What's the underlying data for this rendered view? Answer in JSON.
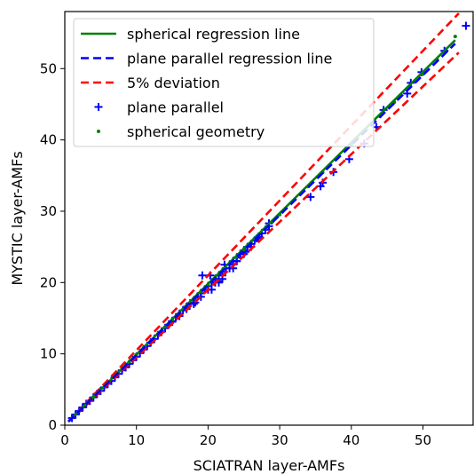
{
  "chart_data": {
    "type": "scatter",
    "xlabel": "SCIATRAN layer-AMFs",
    "ylabel": "MYSTIC layer-AMFs",
    "xlim": [
      0,
      57
    ],
    "ylim": [
      0,
      58
    ],
    "xticks": [
      0,
      10,
      20,
      30,
      40,
      50
    ],
    "yticks": [
      0,
      10,
      20,
      30,
      40,
      50
    ],
    "grid": false,
    "legend_position": "top-left",
    "series": [
      {
        "name": "spherical regression line",
        "kind": "line",
        "style": "solid",
        "color": "#008000",
        "x": [
          0.5,
          54.5
        ],
        "y": [
          0.5,
          54.0
        ]
      },
      {
        "name": "plane parallel regression line",
        "kind": "line",
        "style": "dashed",
        "color": "#0000ff",
        "x": [
          0.5,
          54.5
        ],
        "y": [
          0.5,
          53.5
        ]
      },
      {
        "name": "5% deviation",
        "kind": "line",
        "style": "dashed",
        "color": "#ff0000",
        "x": [
          0.5,
          55.0
        ],
        "y": [
          0.525,
          57.75
        ]
      },
      {
        "name": "",
        "kind": "line",
        "style": "dashed",
        "color": "#ff0000",
        "x": [
          0.5,
          55.0
        ],
        "y": [
          0.475,
          52.25
        ]
      },
      {
        "name": "plane parallel",
        "kind": "scatter",
        "marker": "plus",
        "color": "#0000ff",
        "x": [
          1,
          1.5,
          2,
          2.5,
          3,
          3.5,
          4,
          4.5,
          5,
          5.5,
          6,
          6.5,
          7,
          7.5,
          8,
          8.5,
          9,
          9.5,
          10,
          10.5,
          11,
          11.5,
          12,
          12.5,
          13,
          13.5,
          14,
          14.5,
          15,
          15.5,
          16,
          16.5,
          17,
          17.5,
          18,
          18.5,
          19,
          19.5,
          20,
          20.5,
          21,
          21.5,
          22,
          22.5,
          23,
          23.5,
          24,
          24.5,
          25,
          25.5,
          26,
          26.5,
          27,
          27.5,
          28,
          28.5,
          15,
          16,
          17,
          18,
          19,
          20,
          21,
          22,
          23,
          24,
          25,
          26,
          19.2,
          20.3,
          21.5,
          22.3,
          23.5,
          25.2,
          26.8,
          28.5,
          18.2,
          20.5,
          22.0,
          24.0,
          19.0,
          21.5,
          34.3,
          35.7,
          36.0,
          37.5,
          39.7,
          41.8,
          43.5,
          44.5,
          47.8,
          48.3,
          49.8,
          53.0,
          56.0
        ],
        "y": [
          1,
          1.5,
          2,
          2.5,
          3,
          3.4,
          3.9,
          4.4,
          4.8,
          5.3,
          5.8,
          6.2,
          6.7,
          7.2,
          7.7,
          8.1,
          8.6,
          9.1,
          9.6,
          10.1,
          10.6,
          11.1,
          11.6,
          12.1,
          12.6,
          13.1,
          13.6,
          14.1,
          14.6,
          15.1,
          15.6,
          16.1,
          16.6,
          17.1,
          17.5,
          18.0,
          18.5,
          19.0,
          19.5,
          20.0,
          20.5,
          21.0,
          21.5,
          22.0,
          22.5,
          23.0,
          23.5,
          24.0,
          24.5,
          25.0,
          25.4,
          25.9,
          26.4,
          26.9,
          27.4,
          27.9,
          14.5,
          15.3,
          16.3,
          17.0,
          18.0,
          19.0,
          20.0,
          21.0,
          22.0,
          23.0,
          24.0,
          25.0,
          21.0,
          21.0,
          20.0,
          22.5,
          22.0,
          24.3,
          26.2,
          28.3,
          17.2,
          19.0,
          20.5,
          23.0,
          18.5,
          20.2,
          32.0,
          33.5,
          34.0,
          35.5,
          37.3,
          39.5,
          41.8,
          44.2,
          46.5,
          48.0,
          49.5,
          52.5,
          56.0
        ]
      },
      {
        "name": "spherical geometry",
        "kind": "scatter",
        "marker": "dot",
        "color": "#008000",
        "x": [
          1,
          2,
          3,
          4,
          5,
          6,
          7,
          8,
          9,
          10,
          11,
          12,
          13,
          14,
          15,
          16,
          17,
          18,
          19,
          20,
          21,
          22,
          23,
          24,
          25,
          26,
          27,
          28,
          29,
          30,
          34,
          36,
          38,
          40,
          42,
          44,
          46,
          48,
          50,
          52,
          54.5
        ],
        "y": [
          1,
          1.98,
          2.96,
          3.95,
          4.93,
          5.92,
          6.9,
          7.88,
          8.87,
          9.85,
          10.84,
          11.82,
          12.8,
          13.79,
          14.77,
          15.76,
          16.74,
          17.72,
          18.71,
          19.69,
          20.68,
          21.66,
          22.64,
          23.63,
          24.61,
          25.6,
          26.58,
          27.56,
          28.55,
          29.53,
          33.47,
          35.44,
          37.41,
          39.38,
          41.35,
          43.32,
          45.29,
          47.26,
          49.23,
          51.2,
          54.5
        ]
      }
    ]
  }
}
